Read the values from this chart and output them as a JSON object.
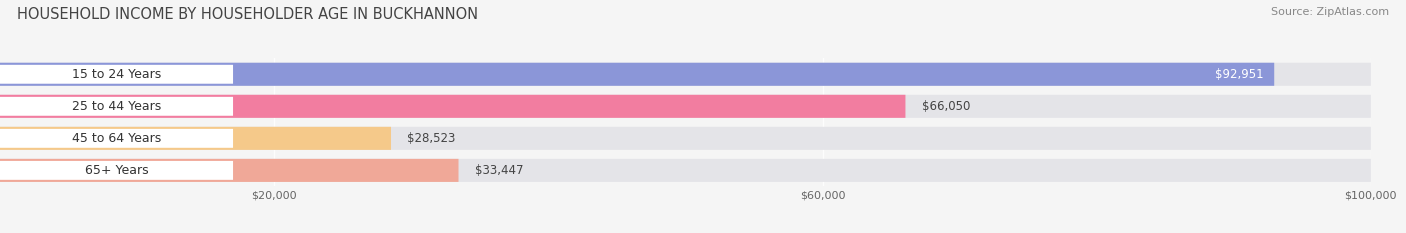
{
  "title": "HOUSEHOLD INCOME BY HOUSEHOLDER AGE IN BUCKHANNON",
  "source": "Source: ZipAtlas.com",
  "categories": [
    "15 to 24 Years",
    "25 to 44 Years",
    "45 to 64 Years",
    "65+ Years"
  ],
  "values": [
    92951,
    66050,
    28523,
    33447
  ],
  "bar_colors": [
    "#8b96d8",
    "#f27da0",
    "#f5c98a",
    "#f0a898"
  ],
  "value_labels": [
    "$92,951",
    "$66,050",
    "$28,523",
    "$33,447"
  ],
  "value_inside": [
    true,
    false,
    false,
    false
  ],
  "xlim": [
    0,
    100000
  ],
  "xticks": [
    20000,
    60000,
    100000
  ],
  "xtick_labels": [
    "$20,000",
    "$60,000",
    "$100,000"
  ],
  "title_fontsize": 10.5,
  "source_fontsize": 8,
  "label_fontsize": 9,
  "value_fontsize": 8.5,
  "background_color": "#f5f5f5",
  "bar_bg_color": "#e4e4e8",
  "label_pill_color": "#ffffff",
  "row_gap_color": "#f5f5f5"
}
